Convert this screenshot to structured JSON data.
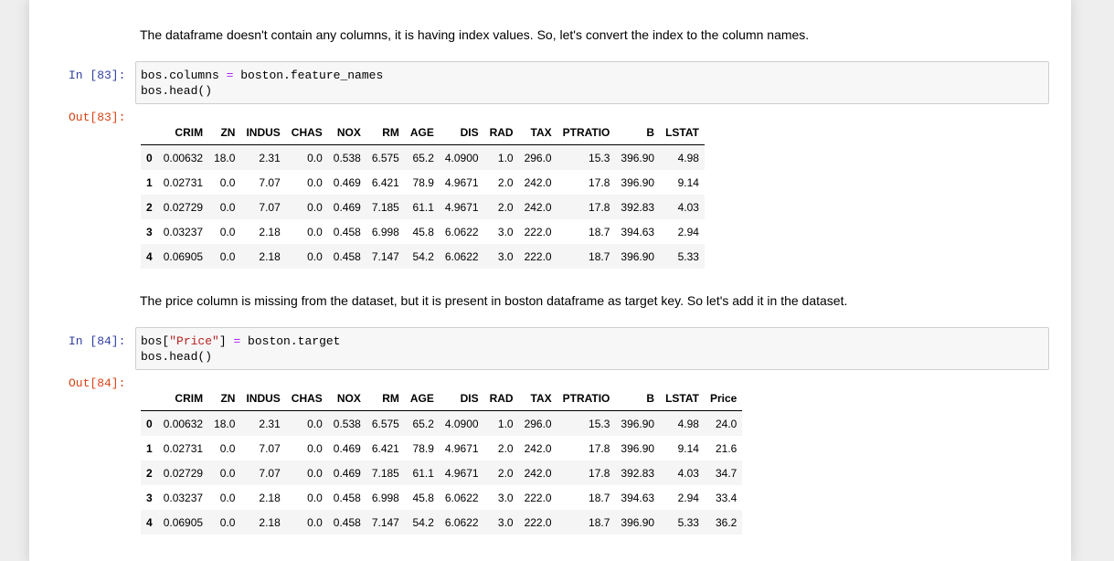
{
  "md1": "The dataframe doesn't contain any columns, it is having index values. So, let's convert the index to the column names.",
  "md2": "The price column is missing from the dataset, but it is present in boston dataframe as target key. So let's add it in the dataset.",
  "cell83": {
    "in_prompt": "In [83]:",
    "out_prompt": "Out[83]:",
    "line1_a": "bos.columns ",
    "line1_op": "=",
    "line1_b": " boston.feature_names",
    "line2": "bos.head()"
  },
  "cell84": {
    "in_prompt": "In [84]:",
    "out_prompt": "Out[84]:",
    "line1_a": "bos[",
    "line1_str": "\"Price\"",
    "line1_b": "] ",
    "line1_op": "=",
    "line1_c": " boston.target",
    "line2": "bos.head()"
  },
  "table1": {
    "columns": [
      "",
      "CRIM",
      "ZN",
      "INDUS",
      "CHAS",
      "NOX",
      "RM",
      "AGE",
      "DIS",
      "RAD",
      "TAX",
      "PTRATIO",
      "B",
      "LSTAT"
    ],
    "rows": [
      [
        "0",
        "0.00632",
        "18.0",
        "2.31",
        "0.0",
        "0.538",
        "6.575",
        "65.2",
        "4.0900",
        "1.0",
        "296.0",
        "15.3",
        "396.90",
        "4.98"
      ],
      [
        "1",
        "0.02731",
        "0.0",
        "7.07",
        "0.0",
        "0.469",
        "6.421",
        "78.9",
        "4.9671",
        "2.0",
        "242.0",
        "17.8",
        "396.90",
        "9.14"
      ],
      [
        "2",
        "0.02729",
        "0.0",
        "7.07",
        "0.0",
        "0.469",
        "7.185",
        "61.1",
        "4.9671",
        "2.0",
        "242.0",
        "17.8",
        "392.83",
        "4.03"
      ],
      [
        "3",
        "0.03237",
        "0.0",
        "2.18",
        "0.0",
        "0.458",
        "6.998",
        "45.8",
        "6.0622",
        "3.0",
        "222.0",
        "18.7",
        "394.63",
        "2.94"
      ],
      [
        "4",
        "0.06905",
        "0.0",
        "2.18",
        "0.0",
        "0.458",
        "7.147",
        "54.2",
        "6.0622",
        "3.0",
        "222.0",
        "18.7",
        "396.90",
        "5.33"
      ]
    ]
  },
  "table2": {
    "columns": [
      "",
      "CRIM",
      "ZN",
      "INDUS",
      "CHAS",
      "NOX",
      "RM",
      "AGE",
      "DIS",
      "RAD",
      "TAX",
      "PTRATIO",
      "B",
      "LSTAT",
      "Price"
    ],
    "rows": [
      [
        "0",
        "0.00632",
        "18.0",
        "2.31",
        "0.0",
        "0.538",
        "6.575",
        "65.2",
        "4.0900",
        "1.0",
        "296.0",
        "15.3",
        "396.90",
        "4.98",
        "24.0"
      ],
      [
        "1",
        "0.02731",
        "0.0",
        "7.07",
        "0.0",
        "0.469",
        "6.421",
        "78.9",
        "4.9671",
        "2.0",
        "242.0",
        "17.8",
        "396.90",
        "9.14",
        "21.6"
      ],
      [
        "2",
        "0.02729",
        "0.0",
        "7.07",
        "0.0",
        "0.469",
        "7.185",
        "61.1",
        "4.9671",
        "2.0",
        "242.0",
        "17.8",
        "392.83",
        "4.03",
        "34.7"
      ],
      [
        "3",
        "0.03237",
        "0.0",
        "2.18",
        "0.0",
        "0.458",
        "6.998",
        "45.8",
        "6.0622",
        "3.0",
        "222.0",
        "18.7",
        "394.63",
        "2.94",
        "33.4"
      ],
      [
        "4",
        "0.06905",
        "0.0",
        "2.18",
        "0.0",
        "0.458",
        "7.147",
        "54.2",
        "6.0622",
        "3.0",
        "222.0",
        "18.7",
        "396.90",
        "5.33",
        "36.2"
      ]
    ]
  }
}
